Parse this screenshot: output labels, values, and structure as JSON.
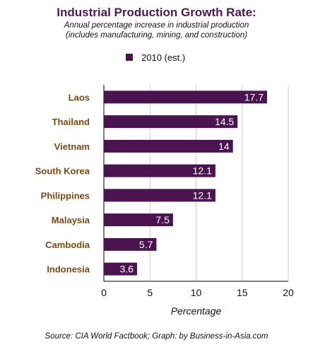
{
  "chart_data": {
    "type": "bar",
    "orientation": "horizontal",
    "title": "Industrial Production Growth Rate:",
    "subtitle": [
      "Annual percentage increase in industrial production",
      "(includes manufacturing, mining, and construction)"
    ],
    "categories": [
      "Laos",
      "Thailand",
      "Vietnam",
      "South Korea",
      "Philippines",
      "Malaysia",
      "Cambodia",
      "Indonesia"
    ],
    "series": [
      {
        "name": "2010 (est.)",
        "values": [
          17.7,
          14.5,
          14,
          12.1,
          12.1,
          7.5,
          5.7,
          3.6
        ],
        "labels": [
          "17.7",
          "14.5",
          "14",
          "12.1",
          "12.1",
          "7.5",
          "5.7",
          "3.6"
        ]
      }
    ],
    "xlabel": "Percentage",
    "xlim": [
      0,
      20
    ],
    "xticks": [
      0,
      5,
      10,
      15,
      20
    ],
    "xtick_labels": [
      "0",
      "5",
      "10",
      "15",
      "20"
    ],
    "grid": "vertical",
    "legend_position": "top-center",
    "source": "Source: CIA World Factbook; Graph: by Business-in-Asia.com",
    "colors": {
      "bar": "#4b1451",
      "title": "#4a1a52",
      "category_label": "#7a4a12",
      "grid": "#cccccc"
    }
  }
}
